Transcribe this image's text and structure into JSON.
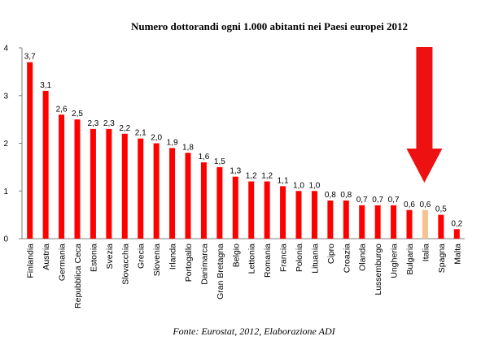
{
  "chart_data": {
    "type": "bar",
    "title": "Numero dottorandi ogni 1.000 abitanti nei Paesi europei 2012",
    "source": "Fonte: Eurostat, 2012, Elaborazione ADI",
    "categories": [
      "Finlandia",
      "Austria",
      "Germania",
      "Repubblica Ceca",
      "Estonia",
      "Svezia",
      "Slovacchia",
      "Grecia",
      "Slovenia",
      "Irlanda",
      "Portogallo",
      "Danimarca",
      "Gran Bretagna",
      "Belgio",
      "Lettonia",
      "Romania",
      "Francia",
      "Polonia",
      "Lituania",
      "Cipro",
      "Croazia",
      "Olanda",
      "Lussemburgo",
      "Ungheria",
      "Bulgaria",
      "Italia",
      "Spagna",
      "Malta"
    ],
    "values": [
      3.7,
      3.1,
      2.6,
      2.5,
      2.3,
      2.3,
      2.2,
      2.1,
      2.0,
      1.9,
      1.8,
      1.6,
      1.5,
      1.3,
      1.2,
      1.2,
      1.1,
      1.0,
      1.0,
      0.8,
      0.8,
      0.7,
      0.7,
      0.7,
      0.6,
      0.6,
      0.5,
      0.2
    ],
    "data_labels": [
      "3,7",
      "3,1",
      "2,6",
      "2,5",
      "2,3",
      "2,3",
      "2,2",
      "2,1",
      "2,0",
      "1,9",
      "1,8",
      "1,6",
      "1,5",
      "1,3",
      "1,2",
      "1,2",
      "1,1",
      "1,0",
      "1,0",
      "0,8",
      "0,8",
      "0,7",
      "0,7",
      "0,7",
      "0,6",
      "0,6",
      "0,5",
      "0,2"
    ],
    "y_ticks": [
      "0",
      "1",
      "2",
      "3",
      "4"
    ],
    "ylim": [
      0,
      4
    ],
    "grid": false,
    "colors": {
      "bar": "#ff0000",
      "highlight": "#f5c291",
      "arrow": "#ee1111"
    },
    "highlight_category": "Italia"
  }
}
